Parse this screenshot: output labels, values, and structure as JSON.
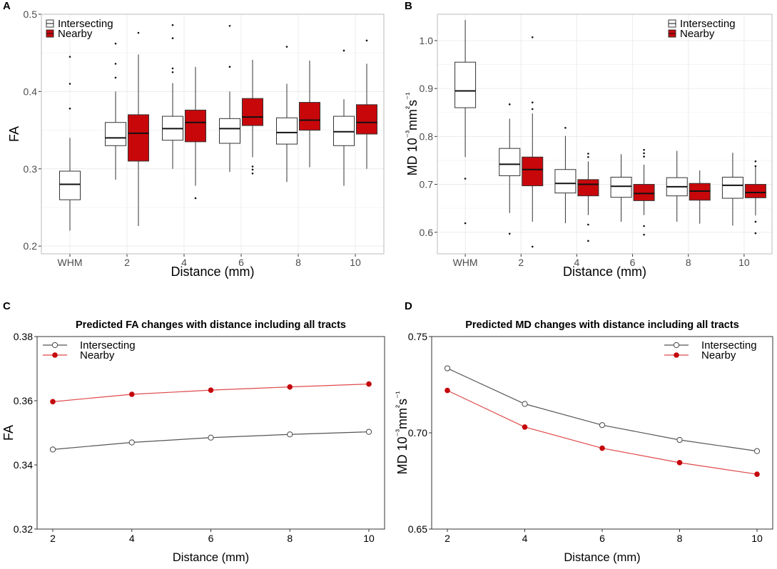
{
  "figure": "Four-panel figure: FA and MD box plots by distance, and predicted changes with distance",
  "colors": {
    "intersecting": "#ffffff",
    "nearby": "#c8070b",
    "line_intersecting": "#555555",
    "line_nearby": "#e04a4a",
    "grid": "#ececec",
    "frame": "#bbbbbb"
  },
  "legend_labels": [
    "Intersecting",
    "Nearby"
  ],
  "chart_data": [
    {
      "panel": "A",
      "type": "box",
      "title": "",
      "xlabel": "Distance (mm)",
      "ylabel": "FA",
      "ylim": [
        0.19,
        0.5
      ],
      "yticks": [
        "0.2",
        "0.3",
        "0.4",
        "0.5"
      ],
      "categories": [
        "WHM",
        "2",
        "4",
        "6",
        "8",
        "10"
      ],
      "legend_position": "top-left",
      "series": [
        {
          "name": "Intersecting",
          "boxes": [
            {
              "cat": "WHM",
              "min": 0.22,
              "q1": 0.26,
              "median": 0.28,
              "q3": 0.297,
              "max": 0.34,
              "outliers": [
                0.445,
                0.41,
                0.378
              ]
            },
            {
              "cat": "2",
              "min": 0.286,
              "q1": 0.33,
              "median": 0.34,
              "q3": 0.36,
              "max": 0.4,
              "outliers": [
                0.462,
                0.436,
                0.418
              ]
            },
            {
              "cat": "4",
              "min": 0.3,
              "q1": 0.337,
              "median": 0.352,
              "q3": 0.368,
              "max": 0.411,
              "outliers": [
                0.486,
                0.469,
                0.43,
                0.425
              ]
            },
            {
              "cat": "6",
              "min": 0.296,
              "q1": 0.333,
              "median": 0.352,
              "q3": 0.365,
              "max": 0.4,
              "outliers": [
                0.485,
                0.432
              ]
            },
            {
              "cat": "8",
              "min": 0.283,
              "q1": 0.332,
              "median": 0.347,
              "q3": 0.366,
              "max": 0.41,
              "outliers": [
                0.458
              ]
            },
            {
              "cat": "10",
              "min": 0.278,
              "q1": 0.33,
              "median": 0.348,
              "q3": 0.368,
              "max": 0.39,
              "outliers": [
                0.453
              ]
            }
          ]
        },
        {
          "name": "Nearby",
          "boxes": [
            {
              "cat": "2",
              "min": 0.226,
              "q1": 0.31,
              "median": 0.346,
              "q3": 0.37,
              "max": 0.448,
              "outliers": [
                0.476
              ]
            },
            {
              "cat": "4",
              "min": 0.278,
              "q1": 0.335,
              "median": 0.36,
              "q3": 0.376,
              "max": 0.432,
              "outliers": [
                0.262
              ]
            },
            {
              "cat": "6",
              "min": 0.315,
              "q1": 0.356,
              "median": 0.367,
              "q3": 0.391,
              "max": 0.441,
              "outliers": [
                0.303,
                0.299,
                0.294
              ]
            },
            {
              "cat": "8",
              "min": 0.302,
              "q1": 0.35,
              "median": 0.363,
              "q3": 0.386,
              "max": 0.44,
              "outliers": []
            },
            {
              "cat": "10",
              "min": 0.3,
              "q1": 0.345,
              "median": 0.36,
              "q3": 0.383,
              "max": 0.436,
              "outliers": [
                0.466
              ]
            }
          ]
        }
      ]
    },
    {
      "panel": "B",
      "type": "box",
      "title": "",
      "xlabel": "Distance (mm)",
      "ylabel": "MD 10⁻³mm²s⁻¹",
      "ylim": [
        0.555,
        1.055
      ],
      "yticks": [
        "0.6",
        "0.7",
        "0.8",
        "0.9",
        "1.0"
      ],
      "categories": [
        "WHM",
        "2",
        "4",
        "6",
        "8",
        "10"
      ],
      "legend_position": "top-right",
      "series": [
        {
          "name": "Intersecting",
          "boxes": [
            {
              "cat": "WHM",
              "min": 0.757,
              "q1": 0.86,
              "median": 0.895,
              "q3": 0.955,
              "max": 1.043,
              "outliers": [
                0.712,
                0.619
              ]
            },
            {
              "cat": "2",
              "min": 0.64,
              "q1": 0.718,
              "median": 0.742,
              "q3": 0.775,
              "max": 0.837,
              "outliers": [
                0.867,
                0.597
              ]
            },
            {
              "cat": "4",
              "min": 0.619,
              "q1": 0.682,
              "median": 0.702,
              "q3": 0.731,
              "max": 0.801,
              "outliers": [
                0.818
              ]
            },
            {
              "cat": "6",
              "min": 0.622,
              "q1": 0.673,
              "median": 0.696,
              "q3": 0.715,
              "max": 0.763,
              "outliers": []
            },
            {
              "cat": "8",
              "min": 0.622,
              "q1": 0.676,
              "median": 0.695,
              "q3": 0.714,
              "max": 0.77,
              "outliers": []
            },
            {
              "cat": "10",
              "min": 0.614,
              "q1": 0.671,
              "median": 0.698,
              "q3": 0.715,
              "max": 0.766,
              "outliers": []
            }
          ]
        },
        {
          "name": "Nearby",
          "boxes": [
            {
              "cat": "2",
              "min": 0.622,
              "q1": 0.697,
              "median": 0.731,
              "q3": 0.757,
              "max": 0.848,
              "outliers": [
                1.007,
                0.871,
                0.857,
                0.57
              ]
            },
            {
              "cat": "4",
              "min": 0.636,
              "q1": 0.676,
              "median": 0.7,
              "q3": 0.71,
              "max": 0.748,
              "outliers": [
                0.764,
                0.757,
                0.616,
                0.582
              ]
            },
            {
              "cat": "6",
              "min": 0.636,
              "q1": 0.666,
              "median": 0.681,
              "q3": 0.7,
              "max": 0.741,
              "outliers": [
                0.772,
                0.765,
                0.758,
                0.613,
                0.595
              ]
            },
            {
              "cat": "8",
              "min": 0.618,
              "q1": 0.667,
              "median": 0.686,
              "q3": 0.702,
              "max": 0.729,
              "outliers": []
            },
            {
              "cat": "10",
              "min": 0.635,
              "q1": 0.672,
              "median": 0.683,
              "q3": 0.7,
              "max": 0.738,
              "outliers": [
                0.748,
                0.738,
                0.622,
                0.598
              ]
            }
          ]
        }
      ]
    },
    {
      "panel": "C",
      "type": "line",
      "title": "Predicted FA changes with distance including all tracts",
      "xlabel": "Distance (mm)",
      "ylabel": "FA",
      "ylim": [
        0.32,
        0.38
      ],
      "xlim": [
        2,
        10
      ],
      "yticks": [
        "0.32",
        "0.34",
        "0.36",
        "0.38"
      ],
      "x": [
        2,
        4,
        6,
        8,
        10
      ],
      "legend_position": "top-left",
      "series": [
        {
          "name": "Intersecting",
          "values": [
            0.3448,
            0.347,
            0.3485,
            0.3495,
            0.3503
          ]
        },
        {
          "name": "Nearby",
          "values": [
            0.3597,
            0.362,
            0.3633,
            0.3643,
            0.3652
          ]
        }
      ]
    },
    {
      "panel": "D",
      "type": "line",
      "title": "Predicted MD changes with distance including all tracts",
      "xlabel": "Distance (mm)",
      "ylabel": "MD 10⁻³mm²s⁻¹",
      "ylim": [
        0.65,
        0.75
      ],
      "xlim": [
        2,
        10
      ],
      "yticks": [
        "0.65",
        "0.70",
        "0.75"
      ],
      "x": [
        2,
        4,
        6,
        8,
        10
      ],
      "legend_position": "top-right",
      "series": [
        {
          "name": "Intersecting",
          "values": [
            0.7335,
            0.715,
            0.704,
            0.6963,
            0.6905
          ]
        },
        {
          "name": "Nearby",
          "values": [
            0.722,
            0.703,
            0.692,
            0.6845,
            0.6785
          ]
        }
      ]
    }
  ]
}
